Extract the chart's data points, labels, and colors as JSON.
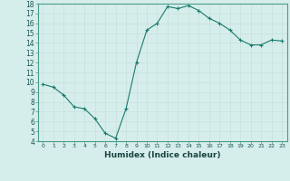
{
  "x": [
    0,
    1,
    2,
    3,
    4,
    5,
    6,
    7,
    8,
    9,
    10,
    11,
    12,
    13,
    14,
    15,
    16,
    17,
    18,
    19,
    20,
    21,
    22,
    23
  ],
  "y": [
    9.8,
    9.5,
    8.7,
    7.5,
    7.3,
    6.3,
    4.8,
    4.3,
    7.3,
    12.0,
    15.3,
    16.0,
    17.7,
    17.5,
    17.8,
    17.3,
    16.5,
    16.0,
    15.3,
    14.3,
    13.8,
    13.8,
    14.3,
    14.2
  ],
  "xlim": [
    -0.5,
    23.5
  ],
  "ylim": [
    4,
    18
  ],
  "yticks": [
    4,
    5,
    6,
    7,
    8,
    9,
    10,
    11,
    12,
    13,
    14,
    15,
    16,
    17,
    18
  ],
  "xticks": [
    0,
    1,
    2,
    3,
    4,
    5,
    6,
    7,
    8,
    9,
    10,
    11,
    12,
    13,
    14,
    15,
    16,
    17,
    18,
    19,
    20,
    21,
    22,
    23
  ],
  "xlabel": "Humidex (Indice chaleur)",
  "line_color": "#1a7a6e",
  "marker": "+",
  "bg_color": "#d6eeeb",
  "grid_color": "#c8e0dc"
}
